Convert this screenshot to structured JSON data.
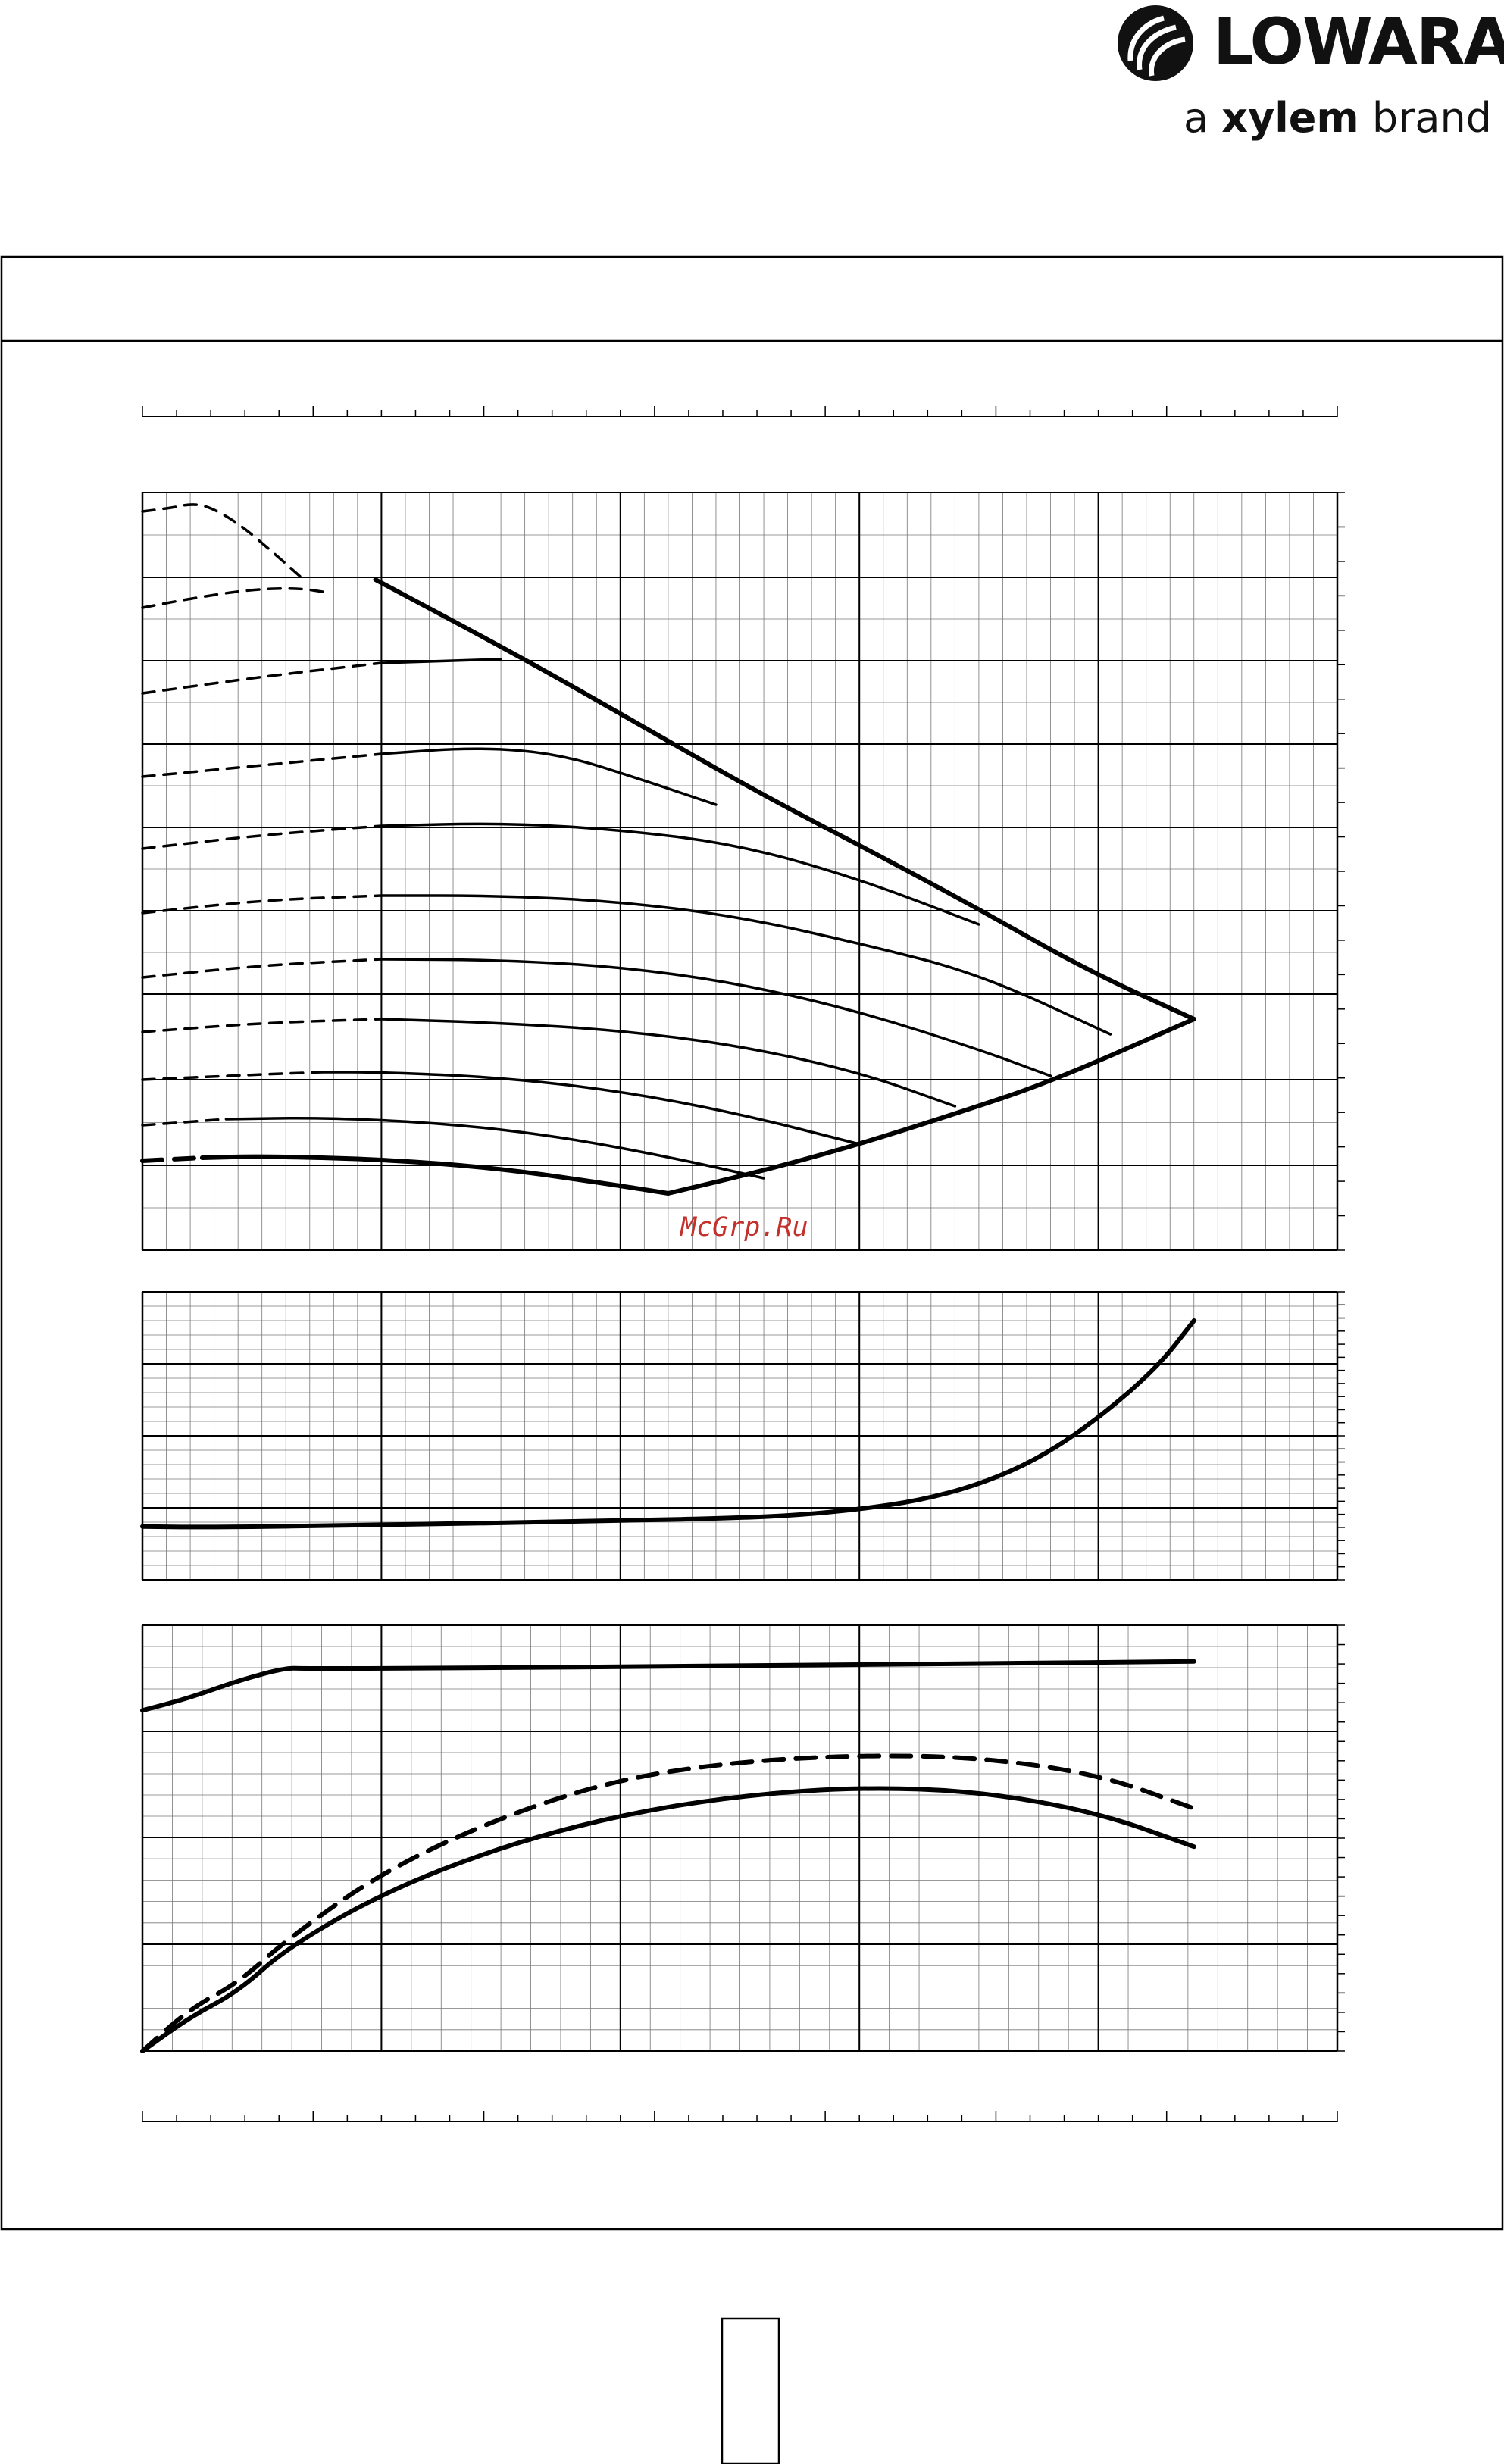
{
  "brand": {
    "logo_icon": "lowara-swirl-icon",
    "name": "LOWARA",
    "tagline_prefix": "a",
    "tagline_bold": "xylem",
    "tagline_suffix": "brand"
  },
  "watermark": "McGrp.Ru",
  "chart_data": [
    {
      "panel": "head",
      "type": "line",
      "x_range": [
        0,
        1
      ],
      "y_range": [
        0,
        1
      ],
      "ticks_labeled": false,
      "series": [
        {
          "style": "dashed",
          "points": [
            [
              0.0,
              0.975
            ],
            [
              0.025,
              0.98
            ],
            [
              0.04,
              0.985
            ],
            [
              0.055,
              0.982
            ],
            [
              0.08,
              0.96
            ],
            [
              0.11,
              0.92
            ],
            [
              0.135,
              0.885
            ]
          ]
        },
        {
          "style": "dashed",
          "points": [
            [
              0.0,
              0.848
            ],
            [
              0.04,
              0.86
            ],
            [
              0.09,
              0.872
            ],
            [
              0.13,
              0.874
            ],
            [
              0.155,
              0.868
            ]
          ]
        },
        {
          "style": "dashed",
          "points": [
            [
              0.0,
              0.735
            ],
            [
              0.1,
              0.757
            ],
            [
              0.2,
              0.775
            ]
          ]
        },
        {
          "style": "solid",
          "points": [
            [
              0.2,
              0.775
            ],
            [
              0.3,
              0.78
            ]
          ]
        },
        {
          "style": "dashed",
          "points": [
            [
              0.0,
              0.625
            ],
            [
              0.08,
              0.637
            ],
            [
              0.2,
              0.655
            ]
          ]
        },
        {
          "style": "solid",
          "points": [
            [
              0.2,
              0.655
            ],
            [
              0.28,
              0.664
            ],
            [
              0.35,
              0.655
            ],
            [
              0.42,
              0.62
            ],
            [
              0.48,
              0.588
            ]
          ]
        },
        {
          "style": "dashed",
          "points": [
            [
              0.0,
              0.53
            ],
            [
              0.1,
              0.548
            ],
            [
              0.2,
              0.56
            ]
          ]
        },
        {
          "style": "solid",
          "points": [
            [
              0.2,
              0.56
            ],
            [
              0.3,
              0.564
            ],
            [
              0.4,
              0.555
            ],
            [
              0.5,
              0.535
            ],
            [
              0.6,
              0.49
            ],
            [
              0.7,
              0.43
            ]
          ]
        },
        {
          "style": "dashed",
          "points": [
            [
              0.0,
              0.445
            ],
            [
              0.1,
              0.462
            ],
            [
              0.2,
              0.468
            ]
          ]
        },
        {
          "style": "solid",
          "points": [
            [
              0.2,
              0.468
            ],
            [
              0.3,
              0.468
            ],
            [
              0.4,
              0.46
            ],
            [
              0.5,
              0.44
            ],
            [
              0.6,
              0.405
            ],
            [
              0.7,
              0.365
            ],
            [
              0.81,
              0.285
            ]
          ]
        },
        {
          "style": "dashed",
          "points": [
            [
              0.0,
              0.36
            ],
            [
              0.1,
              0.376
            ],
            [
              0.2,
              0.384
            ]
          ]
        },
        {
          "style": "solid",
          "points": [
            [
              0.2,
              0.384
            ],
            [
              0.3,
              0.383
            ],
            [
              0.4,
              0.374
            ],
            [
              0.5,
              0.352
            ],
            [
              0.6,
              0.315
            ],
            [
              0.7,
              0.265
            ],
            [
              0.76,
              0.23
            ]
          ]
        },
        {
          "style": "dashed",
          "points": [
            [
              0.0,
              0.288
            ],
            [
              0.1,
              0.3
            ],
            [
              0.2,
              0.305
            ]
          ]
        },
        {
          "style": "solid",
          "points": [
            [
              0.2,
              0.305
            ],
            [
              0.3,
              0.3
            ],
            [
              0.4,
              0.29
            ],
            [
              0.5,
              0.27
            ],
            [
              0.6,
              0.235
            ],
            [
              0.68,
              0.19
            ]
          ]
        },
        {
          "style": "dashed",
          "points": [
            [
              0.0,
              0.225
            ],
            [
              0.1,
              0.232
            ],
            [
              0.15,
              0.235
            ]
          ]
        },
        {
          "style": "solid",
          "points": [
            [
              0.15,
              0.235
            ],
            [
              0.2,
              0.235
            ],
            [
              0.3,
              0.228
            ],
            [
              0.4,
              0.21
            ],
            [
              0.5,
              0.18
            ],
            [
              0.6,
              0.14
            ]
          ]
        },
        {
          "style": "dashed",
          "points": [
            [
              0.0,
              0.165
            ],
            [
              0.07,
              0.173
            ]
          ]
        },
        {
          "style": "solid",
          "points": [
            [
              0.07,
              0.173
            ],
            [
              0.15,
              0.175
            ],
            [
              0.25,
              0.168
            ],
            [
              0.35,
              0.15
            ],
            [
              0.45,
              0.12
            ],
            [
              0.52,
              0.095
            ]
          ]
        },
        {
          "style": "dashed-bold",
          "points": [
            [
              0.0,
              0.118
            ],
            [
              0.05,
              0.122
            ]
          ]
        },
        {
          "style": "solid-bold",
          "points": [
            [
              0.05,
              0.122
            ],
            [
              0.1,
              0.124
            ],
            [
              0.2,
              0.12
            ],
            [
              0.3,
              0.108
            ],
            [
              0.4,
              0.085
            ],
            [
              0.44,
              0.075
            ]
          ]
        },
        {
          "style": "solid-bold",
          "points": [
            [
              0.195,
              0.885
            ],
            [
              0.32,
              0.78
            ],
            [
              0.42,
              0.69
            ],
            [
              0.52,
              0.6
            ],
            [
              0.62,
              0.518
            ],
            [
              0.7,
              0.45
            ],
            [
              0.79,
              0.37
            ],
            [
              0.88,
              0.305
            ]
          ]
        },
        {
          "style": "solid-bold",
          "points": [
            [
              0.44,
              0.075
            ],
            [
              0.52,
              0.105
            ],
            [
              0.6,
              0.14
            ],
            [
              0.68,
              0.18
            ],
            [
              0.76,
              0.222
            ],
            [
              0.88,
              0.305
            ]
          ]
        }
      ]
    },
    {
      "panel": "npsh",
      "type": "line",
      "x_range": [
        0,
        1
      ],
      "y_range": [
        0,
        1
      ],
      "ticks_labeled": false,
      "series": [
        {
          "style": "solid-bold",
          "points": [
            [
              0.0,
              0.185
            ],
            [
              0.05,
              0.182
            ],
            [
              0.2,
              0.19
            ],
            [
              0.4,
              0.205
            ],
            [
              0.5,
              0.215
            ],
            [
              0.55,
              0.225
            ],
            [
              0.6,
              0.245
            ],
            [
              0.65,
              0.275
            ],
            [
              0.7,
              0.33
            ],
            [
              0.75,
              0.42
            ],
            [
              0.8,
              0.56
            ],
            [
              0.85,
              0.74
            ],
            [
              0.88,
              0.9
            ]
          ]
        }
      ]
    },
    {
      "panel": "power-efficiency",
      "type": "line",
      "x_range": [
        0,
        1
      ],
      "y_range": [
        0,
        1
      ],
      "ticks_labeled": false,
      "series": [
        {
          "style": "solid-bold",
          "points": [
            [
              0.0,
              0.8
            ],
            [
              0.04,
              0.83
            ],
            [
              0.08,
              0.87
            ],
            [
              0.12,
              0.9
            ],
            [
              0.135,
              0.898
            ],
            [
              0.3,
              0.9
            ],
            [
              0.5,
              0.905
            ],
            [
              0.7,
              0.91
            ],
            [
              0.88,
              0.915
            ]
          ]
        },
        {
          "style": "dashed-bold",
          "points": [
            [
              0.0,
              0.0
            ],
            [
              0.04,
              0.1
            ],
            [
              0.08,
              0.16
            ],
            [
              0.12,
              0.26
            ],
            [
              0.2,
              0.42
            ],
            [
              0.3,
              0.55
            ],
            [
              0.4,
              0.64
            ],
            [
              0.5,
              0.68
            ],
            [
              0.6,
              0.695
            ],
            [
              0.7,
              0.69
            ],
            [
              0.8,
              0.65
            ],
            [
              0.88,
              0.57
            ]
          ]
        },
        {
          "style": "solid-bold",
          "points": [
            [
              0.0,
              0.0
            ],
            [
              0.04,
              0.08
            ],
            [
              0.08,
              0.14
            ],
            [
              0.12,
              0.24
            ],
            [
              0.2,
              0.37
            ],
            [
              0.3,
              0.48
            ],
            [
              0.4,
              0.555
            ],
            [
              0.5,
              0.6
            ],
            [
              0.6,
              0.62
            ],
            [
              0.7,
              0.61
            ],
            [
              0.8,
              0.56
            ],
            [
              0.88,
              0.48
            ]
          ]
        }
      ]
    }
  ]
}
